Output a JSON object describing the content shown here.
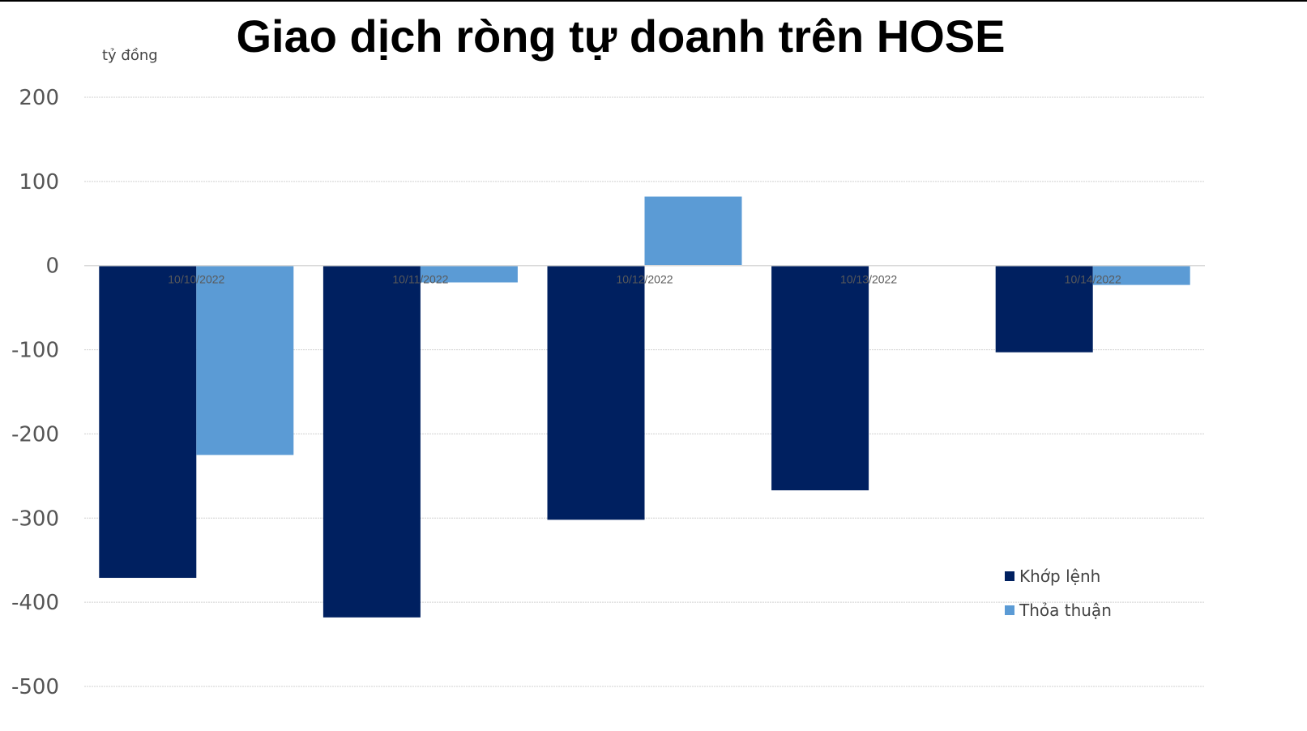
{
  "chart_data": {
    "type": "bar",
    "title": "Giao dịch ròng tự doanh trên HOSE",
    "ylabel": "tỷ đồng",
    "xlabel": "",
    "categories": [
      "10/10/2022",
      "10/11/2022",
      "10/12/2022",
      "10/13/2022",
      "10/14/2022"
    ],
    "series": [
      {
        "name": "Khớp lệnh",
        "color": "#002060",
        "values": [
          -371,
          -418,
          -302,
          -267,
          -103
        ]
      },
      {
        "name": "Thỏa thuận",
        "color": "#5b9bd5",
        "values": [
          -225,
          -20,
          82,
          0,
          -23
        ]
      }
    ],
    "ylim": [
      -500,
      200
    ],
    "yticks": [
      "200",
      "100",
      "0",
      "-100",
      "-200",
      "-300",
      "-400",
      "-500"
    ],
    "grid": true,
    "legend": "bottom-right"
  }
}
